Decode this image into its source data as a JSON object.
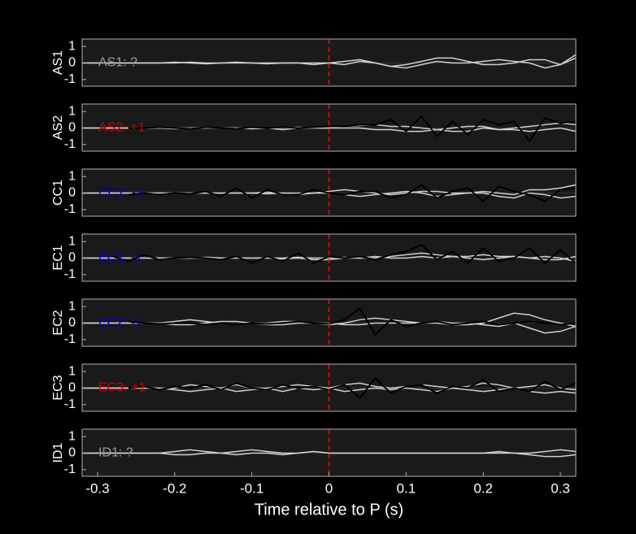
{
  "chart_data": [
    {
      "type": "line",
      "ylabel": "AS1",
      "annotation": "AS1: ?",
      "annotation_color": "#9a9a9a",
      "xlim": [
        -0.32,
        0.32
      ],
      "ylim": [
        -1.4,
        1.45
      ],
      "yticks": [
        -1,
        0,
        1
      ],
      "vline": 0,
      "vline_color": "#ff0000",
      "x": [
        -0.32,
        -0.3,
        -0.28,
        -0.26,
        -0.24,
        -0.22,
        -0.2,
        -0.18,
        -0.16,
        -0.14,
        -0.12,
        -0.1,
        -0.08,
        -0.06,
        -0.04,
        -0.02,
        0,
        0.02,
        0.04,
        0.06,
        0.08,
        0.1,
        0.12,
        0.14,
        0.16,
        0.18,
        0.2,
        0.22,
        0.24,
        0.26,
        0.28,
        0.3,
        0.32
      ],
      "series": [
        {
          "color": "#d0d0d0",
          "values": [
            0,
            0,
            0,
            0,
            0,
            0,
            0.05,
            0,
            -0.05,
            0,
            0.05,
            0,
            -0.05,
            0,
            0,
            0,
            0,
            -0.1,
            0.1,
            0,
            -0.2,
            -0.1,
            0.1,
            0.3,
            0.3,
            0.1,
            -0.1,
            -0.1,
            0,
            0.2,
            0.2,
            -0.1,
            0.3
          ]
        },
        {
          "color": "#d0d0d0",
          "values": [
            0,
            0,
            0,
            0,
            0,
            0,
            0,
            0.05,
            0,
            0,
            0,
            0,
            0,
            0,
            0,
            -0.1,
            0,
            0.1,
            0.2,
            0,
            -0.2,
            -0.3,
            -0.1,
            0.1,
            0,
            0,
            0.1,
            0.2,
            0.1,
            0,
            -0.3,
            -0.1,
            0.5
          ]
        }
      ]
    },
    {
      "type": "line",
      "ylabel": "AS2",
      "annotation": "AS2: +1",
      "annotation_color": "#cc0000",
      "xlim": [
        -0.32,
        0.32
      ],
      "ylim": [
        -1.4,
        1.45
      ],
      "yticks": [
        -1,
        0,
        1
      ],
      "vline": 0,
      "vline_color": "#ff0000",
      "x": [
        -0.32,
        -0.3,
        -0.28,
        -0.26,
        -0.24,
        -0.22,
        -0.2,
        -0.18,
        -0.16,
        -0.14,
        -0.12,
        -0.1,
        -0.08,
        -0.06,
        -0.04,
        -0.02,
        0,
        0.02,
        0.04,
        0.06,
        0.08,
        0.1,
        0.12,
        0.14,
        0.16,
        0.18,
        0.2,
        0.22,
        0.24,
        0.26,
        0.28,
        0.3,
        0.32
      ],
      "series": [
        {
          "color": "#d0d0d0",
          "values": [
            0,
            0,
            0,
            0,
            0,
            0,
            0,
            0,
            0.05,
            0,
            0,
            0,
            0,
            0,
            0.05,
            0,
            0,
            0.1,
            0.15,
            0.2,
            0.1,
            0.1,
            0,
            -0.1,
            0,
            0.1,
            0.1,
            -0.1,
            0,
            0.1,
            0.2,
            0.3,
            0.2
          ]
        },
        {
          "color": "#d0d0d0",
          "values": [
            0,
            0,
            0,
            0,
            0,
            0,
            -0.05,
            0,
            0,
            0,
            0,
            -0.05,
            0,
            -0.1,
            0,
            0,
            0,
            0,
            0,
            -0.1,
            -0.1,
            -0.2,
            -0.2,
            -0.1,
            -0.2,
            -0.2,
            0,
            -0.1,
            -0.1,
            -0.2,
            -0.1,
            0,
            -0.2
          ]
        },
        {
          "color": "#000000",
          "values": [
            null,
            null,
            null,
            0,
            0,
            0.05,
            0,
            -0.05,
            0.05,
            0,
            -0.05,
            0.05,
            0,
            0.05,
            0,
            0.05,
            0.1,
            0.1,
            0.2,
            0.2,
            0.5,
            -0.2,
            0.7,
            -0.5,
            0.4,
            -0.4,
            0.5,
            0.2,
            0.4,
            -0.8,
            0.6,
            0.3,
            0.4
          ]
        }
      ]
    },
    {
      "type": "line",
      "ylabel": "CC1",
      "annotation": "CC1: -1",
      "annotation_color": "#0000bb",
      "xlim": [
        -0.32,
        0.32
      ],
      "ylim": [
        -1.4,
        1.45
      ],
      "yticks": [
        -1,
        0,
        1
      ],
      "vline": 0,
      "vline_color": "#ff0000",
      "x": [
        -0.32,
        -0.3,
        -0.28,
        -0.26,
        -0.24,
        -0.22,
        -0.2,
        -0.18,
        -0.16,
        -0.14,
        -0.12,
        -0.1,
        -0.08,
        -0.06,
        -0.04,
        -0.02,
        0,
        0.02,
        0.04,
        0.06,
        0.08,
        0.1,
        0.12,
        0.14,
        0.16,
        0.18,
        0.2,
        0.22,
        0.24,
        0.26,
        0.28,
        0.3,
        0.32
      ],
      "series": [
        {
          "color": "#d0d0d0",
          "values": [
            0,
            0,
            0,
            0,
            0,
            0,
            0,
            0,
            0,
            0,
            0,
            0,
            0.05,
            0,
            0,
            0,
            0.1,
            0.2,
            0.1,
            0,
            -0.1,
            0,
            0.1,
            0.1,
            0,
            0,
            0.1,
            0,
            -0.1,
            0.2,
            0.2,
            0.3,
            0.5
          ]
        },
        {
          "color": "#d0d0d0",
          "values": [
            0,
            0,
            0,
            0,
            0,
            0,
            0,
            0,
            0,
            0,
            0,
            0,
            -0.05,
            0,
            -0.1,
            0,
            0,
            -0.1,
            -0.2,
            -0.1,
            0,
            0.1,
            0,
            -0.2,
            -0.1,
            0,
            0,
            -0.2,
            -0.3,
            0,
            -0.1,
            -0.3,
            -0.2
          ]
        },
        {
          "color": "#000000",
          "values": [
            null,
            null,
            null,
            -0.1,
            0,
            -0.1,
            0,
            -0.05,
            0.1,
            -0.2,
            0.3,
            -0.3,
            0.2,
            -0.1,
            -0.1,
            0.2,
            0,
            -0.1,
            0.1,
            0.1,
            -0.3,
            -0.1,
            0.5,
            -0.3,
            0.1,
            0.3,
            -0.5,
            0.4,
            0.1,
            -0.1,
            -0.5,
            0.2,
            0.3
          ]
        }
      ]
    },
    {
      "type": "line",
      "ylabel": "EC1",
      "annotation": "EC1: -1",
      "annotation_color": "#0000bb",
      "xlim": [
        -0.32,
        0.32
      ],
      "ylim": [
        -1.4,
        1.45
      ],
      "yticks": [
        -1,
        0,
        1
      ],
      "vline": 0,
      "vline_color": "#ff0000",
      "x": [
        -0.32,
        -0.3,
        -0.28,
        -0.26,
        -0.24,
        -0.22,
        -0.2,
        -0.18,
        -0.16,
        -0.14,
        -0.12,
        -0.1,
        -0.08,
        -0.06,
        -0.04,
        -0.02,
        0,
        0.02,
        0.04,
        0.06,
        0.08,
        0.1,
        0.12,
        0.14,
        0.16,
        0.18,
        0.2,
        0.22,
        0.24,
        0.26,
        0.28,
        0.3,
        0.32
      ],
      "series": [
        {
          "color": "#d0d0d0",
          "values": [
            0,
            0,
            0,
            0,
            0,
            0,
            0,
            0,
            0.05,
            0,
            0,
            0,
            0,
            -0.05,
            0,
            -0.1,
            -0.1,
            0,
            0,
            0,
            0.1,
            0.2,
            0.3,
            0.2,
            0.1,
            0.1,
            0.2,
            0.1,
            0.1,
            0,
            0.1,
            0,
            -0.2
          ]
        },
        {
          "color": "#d0d0d0",
          "values": [
            0,
            0,
            0,
            0,
            0,
            0,
            0,
            0,
            0,
            0,
            0,
            0,
            0,
            0,
            0.05,
            0,
            0,
            0.05,
            0,
            0.1,
            0,
            0,
            0.1,
            0,
            0.1,
            0,
            -0.1,
            0,
            0.1,
            0,
            -0.1,
            -0.1,
            0.1
          ]
        },
        {
          "color": "#000000",
          "values": [
            null,
            null,
            0.1,
            -0.2,
            0.2,
            -0.1,
            0,
            0.05,
            0,
            -0.1,
            0.1,
            -0.3,
            0.1,
            -0.2,
            0.3,
            -0.3,
            0.1,
            0,
            0.1,
            -0.1,
            0.2,
            0.4,
            0.8,
            -0.1,
            0.4,
            -0.3,
            0.6,
            -0.2,
            0,
            0.6,
            -0.3,
            0.5,
            -0.3
          ]
        }
      ]
    },
    {
      "type": "line",
      "ylabel": "EC2",
      "annotation": "EC2: -1",
      "annotation_color": "#0000bb",
      "xlim": [
        -0.32,
        0.32
      ],
      "ylim": [
        -1.4,
        1.45
      ],
      "yticks": [
        -1,
        0,
        1
      ],
      "vline": 0,
      "vline_color": "#ff0000",
      "x": [
        -0.32,
        -0.3,
        -0.28,
        -0.26,
        -0.24,
        -0.22,
        -0.2,
        -0.18,
        -0.16,
        -0.14,
        -0.12,
        -0.1,
        -0.08,
        -0.06,
        -0.04,
        -0.02,
        0,
        0.02,
        0.04,
        0.06,
        0.08,
        0.1,
        0.12,
        0.14,
        0.16,
        0.18,
        0.2,
        0.22,
        0.24,
        0.26,
        0.28,
        0.3,
        0.32
      ],
      "series": [
        {
          "color": "#d0d0d0",
          "values": [
            0,
            0,
            0,
            0,
            0,
            0,
            0.1,
            0.2,
            0.1,
            0,
            -0.1,
            0,
            0,
            0.1,
            0.1,
            0,
            -0.1,
            0,
            0.2,
            0.3,
            0.2,
            0.1,
            0,
            0,
            -0.1,
            -0.1,
            0,
            0.3,
            0.6,
            0.5,
            0.2,
            0,
            -0.2
          ]
        },
        {
          "color": "#d0d0d0",
          "values": [
            0,
            0,
            0,
            0,
            0,
            0,
            -0.1,
            -0.1,
            0,
            0.1,
            0.1,
            0,
            -0.1,
            -0.1,
            0,
            0,
            0,
            -0.1,
            -0.1,
            0,
            0,
            0,
            0,
            0.1,
            0,
            0,
            -0.1,
            -0.2,
            0,
            -0.3,
            -0.6,
            -0.5,
            -0.2
          ]
        },
        {
          "color": "#000000",
          "values": [
            null,
            null,
            null,
            0.1,
            0,
            -0.05,
            0,
            0,
            -0.1,
            0,
            -0.1,
            0,
            -0.05,
            0,
            0.1,
            0,
            -0.05,
            0.2,
            0.9,
            -0.7,
            0.2,
            -0.2,
            0,
            0.1,
            -0.1,
            0,
            0.1,
            -0.1,
            0,
            0.1,
            0,
            -0.1,
            0
          ]
        }
      ]
    },
    {
      "type": "line",
      "ylabel": "EC3",
      "annotation": "EC3: +1",
      "annotation_color": "#cc0000",
      "xlim": [
        -0.32,
        0.32
      ],
      "ylim": [
        -1.4,
        1.45
      ],
      "yticks": [
        -1,
        0,
        1
      ],
      "vline": 0,
      "vline_color": "#ff0000",
      "x": [
        -0.32,
        -0.3,
        -0.28,
        -0.26,
        -0.24,
        -0.22,
        -0.2,
        -0.18,
        -0.16,
        -0.14,
        -0.12,
        -0.1,
        -0.08,
        -0.06,
        -0.04,
        -0.02,
        0,
        0.02,
        0.04,
        0.06,
        0.08,
        0.1,
        0.12,
        0.14,
        0.16,
        0.18,
        0.2,
        0.22,
        0.24,
        0.26,
        0.28,
        0.3,
        0.32
      ],
      "series": [
        {
          "color": "#d0d0d0",
          "values": [
            0,
            0,
            0,
            0,
            0,
            0,
            0,
            0.2,
            0.1,
            0,
            0.2,
            0,
            0,
            0.1,
            0.2,
            0.1,
            0,
            0.2,
            0.3,
            0.1,
            0,
            0.1,
            0.2,
            0.1,
            0,
            0.1,
            0.3,
            0.2,
            0,
            0.1,
            0.2,
            0,
            -0.1
          ]
        },
        {
          "color": "#d0d0d0",
          "values": [
            0,
            0,
            0,
            0,
            0,
            0,
            -0.1,
            -0.2,
            -0.1,
            0,
            -0.2,
            -0.1,
            0,
            -0.2,
            0,
            -0.1,
            0,
            -0.2,
            -0.1,
            0,
            -0.1,
            0,
            -0.1,
            -0.2,
            0,
            -0.1,
            -0.2,
            -0.1,
            0,
            -0.2,
            -0.3,
            -0.2,
            -0.3
          ]
        },
        {
          "color": "#000000",
          "values": [
            null,
            null,
            null,
            0,
            0.1,
            -0.1,
            0.1,
            0,
            0.2,
            -0.1,
            0.3,
            0,
            -0.1,
            0.2,
            0,
            0.1,
            -0.1,
            0.2,
            -0.6,
            0.6,
            -0.3,
            0.1,
            0.2,
            -0.3,
            0.1,
            0,
            0.5,
            -0.2,
            0,
            -0.2,
            0.4,
            -0.1,
            0.3
          ]
        }
      ]
    },
    {
      "type": "line",
      "ylabel": "ID1",
      "annotation": "ID1: ?",
      "annotation_color": "#9a9a9a",
      "xlabel": "Time relative to P (s)",
      "xlim": [
        -0.32,
        0.32
      ],
      "ylim": [
        -1.4,
        1.45
      ],
      "yticks": [
        -1,
        0,
        1
      ],
      "xticks": [
        -0.3,
        -0.2,
        -0.1,
        0,
        0.1,
        0.2,
        0.3
      ],
      "vline": 0,
      "vline_color": "#ff0000",
      "x": [
        -0.32,
        -0.3,
        -0.28,
        -0.26,
        -0.24,
        -0.22,
        -0.2,
        -0.18,
        -0.16,
        -0.14,
        -0.12,
        -0.1,
        -0.08,
        -0.06,
        -0.04,
        -0.02,
        0,
        0.02,
        0.04,
        0.06,
        0.08,
        0.1,
        0.12,
        0.14,
        0.16,
        0.18,
        0.2,
        0.22,
        0.24,
        0.26,
        0.28,
        0.3,
        0.32
      ],
      "series": [
        {
          "color": "#d0d0d0",
          "values": [
            0,
            0,
            0,
            0,
            0,
            0,
            0.1,
            0.2,
            0.1,
            0,
            0.1,
            0.2,
            0.1,
            0,
            0,
            0.1,
            0,
            0,
            0,
            0,
            0,
            0,
            0,
            0,
            0,
            0,
            0,
            0,
            0,
            0,
            0.1,
            0.2,
            0.1
          ]
        },
        {
          "color": "#d0d0d0",
          "values": [
            0,
            0,
            0,
            0,
            0,
            0,
            -0.1,
            -0.1,
            0,
            0,
            -0.1,
            0,
            0,
            -0.1,
            0,
            0.1,
            0,
            0,
            0,
            0,
            0,
            0,
            0,
            0,
            0,
            0,
            0,
            0.1,
            0,
            -0.1,
            -0.2,
            -0.2,
            -0.1
          ]
        }
      ]
    }
  ]
}
